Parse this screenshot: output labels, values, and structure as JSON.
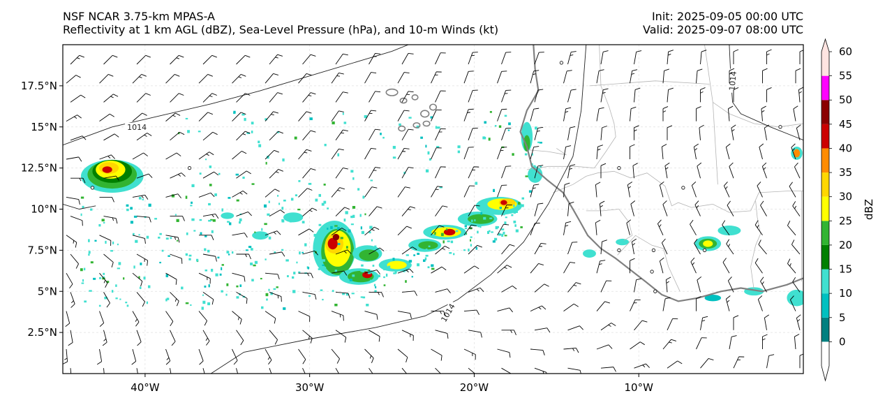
{
  "header": {
    "left_line1": "NSF NCAR 3.75-km MPAS-A",
    "left_line2": "Reflectivity at 1 km AGL (dBZ), Sea-Level Pressure (hPa), and 10-m Winds (kt)",
    "right_line1": "Init: 2025-09-05 00:00 UTC",
    "right_line2": "Valid: 2025-09-07 08:00 UTC"
  },
  "map": {
    "extent": {
      "lon_min": -45,
      "lon_max": 0,
      "lat_min": 0,
      "lat_max": 20
    },
    "lat_ticks": [
      {
        "value": 2.5,
        "label": "2.5°N"
      },
      {
        "value": 5,
        "label": "5°N"
      },
      {
        "value": 7.5,
        "label": "7.5°N"
      },
      {
        "value": 10,
        "label": "10°N"
      },
      {
        "value": 12.5,
        "label": "12.5°N"
      },
      {
        "value": 15,
        "label": "15°N"
      },
      {
        "value": 17.5,
        "label": "17.5°N"
      }
    ],
    "lon_ticks": [
      {
        "value": -40,
        "label": "40°W"
      },
      {
        "value": -30,
        "label": "30°W"
      },
      {
        "value": -20,
        "label": "20°W"
      },
      {
        "value": -10,
        "label": "10°W"
      }
    ],
    "isobar_label": "1014",
    "isobars": [
      [
        [
          -45,
          13.9
        ],
        [
          -42,
          15.0
        ],
        [
          -39,
          15.7
        ],
        [
          -36,
          16.4
        ],
        [
          -33,
          17.2
        ],
        [
          -30,
          18.1
        ],
        [
          -27,
          19.0
        ],
        [
          -25,
          19.6
        ],
        [
          -24,
          20
        ]
      ],
      [
        [
          -36,
          0
        ],
        [
          -34,
          1.3
        ],
        [
          -30,
          2.1
        ],
        [
          -26,
          2.8
        ],
        [
          -23,
          3.5
        ],
        [
          -21,
          4.5
        ],
        [
          -19,
          6.0
        ],
        [
          -17,
          8.0
        ],
        [
          -15.5,
          10.3
        ],
        [
          -14,
          13.2
        ],
        [
          -13.5,
          16
        ],
        [
          -13.2,
          20
        ]
      ],
      [
        [
          -4.5,
          20
        ],
        [
          -4.4,
          17.8
        ],
        [
          -4.3,
          16.5
        ],
        [
          -3.8,
          15.8
        ],
        [
          -2,
          15
        ],
        [
          0,
          14.2
        ]
      ],
      [
        [
          -45,
          10.3
        ],
        [
          -44,
          10.0
        ],
        [
          -43,
          10.2
        ]
      ]
    ],
    "coastline": [
      [
        -16.4,
        20
      ],
      [
        -16.3,
        18.5
      ],
      [
        -16.1,
        17.2
      ],
      [
        -16.8,
        16.0
      ],
      [
        -17.2,
        14.7
      ],
      [
        -16.8,
        13.8
      ],
      [
        -16.5,
        12.6
      ],
      [
        -15.6,
        11.8
      ],
      [
        -14.6,
        11.0
      ],
      [
        -14.0,
        10.0
      ],
      [
        -13.6,
        9.3
      ],
      [
        -13.1,
        8.4
      ],
      [
        -12.3,
        7.6
      ],
      [
        -11.4,
        7.0
      ],
      [
        -10.5,
        6.3
      ],
      [
        -9.6,
        5.6
      ],
      [
        -8.6,
        4.8
      ],
      [
        -7.6,
        4.4
      ],
      [
        -6.4,
        4.6
      ],
      [
        -5.0,
        5.0
      ],
      [
        -3.8,
        5.2
      ],
      [
        -2.5,
        5.0
      ],
      [
        -1.0,
        5.4
      ],
      [
        0,
        5.8
      ]
    ],
    "borders": [
      [
        [
          -12.4,
          20
        ],
        [
          -12.3,
          17.5
        ],
        [
          -11.8,
          16.2
        ],
        [
          -11.5,
          15.2
        ],
        [
          -11.4,
          14.4
        ],
        [
          -12.0,
          13.5
        ],
        [
          -12.7,
          12.5
        ],
        [
          -13.8,
          12.6
        ],
        [
          -15.5,
          12.6
        ],
        [
          -16.8,
          12.4
        ]
      ],
      [
        [
          -16.7,
          13.6
        ],
        [
          -15.5,
          13.5
        ],
        [
          -14.4,
          13.3
        ],
        [
          -15.0,
          13.7
        ]
      ],
      [
        [
          -15.2,
          11.0
        ],
        [
          -14.0,
          11.5
        ],
        [
          -13.2,
          12.0
        ],
        [
          -12.5,
          12.2
        ],
        [
          -11.5,
          12.3
        ],
        [
          -10.5,
          11.9
        ],
        [
          -9.5,
          12.2
        ],
        [
          -8.4,
          11.4
        ],
        [
          -8.0,
          10.2
        ],
        [
          -7.6,
          10.4
        ],
        [
          -6.8,
          10.1
        ],
        [
          -5.5,
          10.3
        ],
        [
          -4.5,
          9.8
        ],
        [
          -3.2,
          9.9
        ],
        [
          -2.7,
          11.0
        ],
        [
          -1.0,
          11.1
        ],
        [
          0,
          11.1
        ]
      ],
      [
        [
          -13.2,
          9.9
        ],
        [
          -12.2,
          9.9
        ],
        [
          -11.2,
          10.0
        ],
        [
          -10.6,
          9.2
        ],
        [
          -10.4,
          8.4
        ],
        [
          -10.9,
          8.1
        ]
      ],
      [
        [
          -11.3,
          7.2
        ],
        [
          -10.2,
          8.4
        ],
        [
          -9.2,
          7.8
        ],
        [
          -8.5,
          7.6
        ],
        [
          -8.2,
          6.5
        ],
        [
          -7.5,
          5.0
        ]
      ],
      [
        [
          -3.0,
          5.1
        ],
        [
          -3.2,
          6.5
        ],
        [
          -2.9,
          7.8
        ],
        [
          -2.6,
          8.5
        ],
        [
          -2.8,
          9.5
        ],
        [
          -2.9,
          10.5
        ]
      ],
      [
        [
          -8.7,
          20
        ],
        [
          -6.0,
          20
        ],
        [
          -5.5,
          16.5
        ],
        [
          -4.5,
          15.8
        ],
        [
          -3.0,
          15.2
        ],
        [
          -1.5,
          15.0
        ],
        [
          0,
          15.2
        ]
      ],
      [
        [
          -5.5,
          16.5
        ],
        [
          -5.2,
          11.5
        ]
      ],
      [
        [
          -0.1,
          11.1
        ],
        [
          -0.1,
          5.6
        ]
      ],
      [
        [
          -13.0,
          17.5
        ],
        [
          -9.0,
          17.8
        ],
        [
          -5.7,
          17.6
        ]
      ]
    ],
    "islands": [
      [
        -25.0,
        17.1,
        0.35,
        0.2
      ],
      [
        -24.3,
        16.6,
        0.2,
        0.15
      ],
      [
        -23.6,
        16.8,
        0.18,
        0.15
      ],
      [
        -23.0,
        15.8,
        0.25,
        0.2
      ],
      [
        -24.4,
        14.9,
        0.2,
        0.15
      ],
      [
        -23.5,
        15.1,
        0.2,
        0.15
      ],
      [
        -22.9,
        15.2,
        0.2,
        0.15
      ],
      [
        -22.5,
        16.2,
        0.2,
        0.18
      ]
    ],
    "small_circles": [
      [
        -14.7,
        18.9
      ],
      [
        -1.4,
        15.0
      ],
      [
        -11.2,
        12.5
      ],
      [
        -37.3,
        12.5
      ],
      [
        -7.3,
        11.3
      ],
      [
        -11.2,
        7.5
      ],
      [
        -9.1,
        7.5
      ],
      [
        -6.0,
        7.5
      ],
      [
        -9.2,
        6.2
      ],
      [
        -9.0,
        5.0
      ],
      [
        -43.2,
        11.3
      ]
    ],
    "winds": {
      "arrow_dir_deg": [
        [
          45,
          45,
          45,
          45,
          45,
          45,
          40,
          40,
          35,
          30,
          30,
          25,
          20,
          20,
          20,
          15,
          10,
          10,
          5,
          5,
          0,
          0,
          0
        ],
        [
          50,
          45,
          45,
          45,
          45,
          45,
          40,
          40,
          35,
          30,
          30,
          25,
          20,
          20,
          15,
          15,
          10,
          10,
          5,
          5,
          0,
          0,
          0
        ],
        [
          55,
          50,
          45,
          45,
          45,
          45,
          40,
          40,
          35,
          30,
          30,
          25,
          20,
          20,
          15,
          15,
          10,
          5,
          5,
          0,
          0,
          0,
          355
        ],
        [
          60,
          55,
          50,
          50,
          45,
          45,
          40,
          40,
          35,
          30,
          30,
          25,
          20,
          20,
          15,
          10,
          10,
          5,
          0,
          0,
          355,
          355,
          350
        ],
        [
          70,
          60,
          55,
          50,
          50,
          45,
          45,
          40,
          35,
          30,
          30,
          25,
          20,
          20,
          15,
          10,
          5,
          0,
          0,
          355,
          350,
          350,
          345
        ],
        [
          80,
          70,
          60,
          60,
          55,
          50,
          45,
          40,
          35,
          30,
          30,
          25,
          20,
          20,
          15,
          10,
          5,
          0,
          355,
          350,
          345,
          345,
          340
        ],
        [
          90,
          80,
          70,
          65,
          60,
          55,
          45,
          40,
          35,
          30,
          30,
          25,
          25,
          20,
          15,
          10,
          0,
          355,
          350,
          345,
          340,
          340,
          335
        ],
        [
          100,
          90,
          80,
          75,
          70,
          60,
          50,
          45,
          40,
          35,
          35,
          30,
          25,
          20,
          15,
          5,
          355,
          350,
          345,
          340,
          335,
          335,
          330
        ],
        [
          110,
          100,
          95,
          90,
          80,
          70,
          60,
          50,
          45,
          40,
          40,
          35,
          30,
          25,
          15,
          5,
          355,
          345,
          340,
          335,
          330,
          330,
          325
        ],
        [
          125,
          115,
          105,
          100,
          90,
          80,
          70,
          60,
          55,
          50,
          45,
          40,
          35,
          30,
          20,
          10,
          355,
          345,
          335,
          330,
          325,
          325,
          320
        ],
        [
          140,
          130,
          120,
          110,
          100,
          90,
          80,
          75,
          70,
          60,
          55,
          50,
          45,
          40,
          30,
          20,
          5,
          350,
          335,
          330,
          325,
          320,
          320
        ],
        [
          150,
          140,
          130,
          120,
          115,
          105,
          95,
          90,
          80,
          75,
          70,
          60,
          55,
          50,
          40,
          30,
          15,
          0,
          345,
          335,
          330,
          325,
          320
        ],
        [
          160,
          150,
          140,
          135,
          125,
          120,
          110,
          100,
          95,
          90,
          85,
          75,
          70,
          60,
          50,
          40,
          25,
          10,
          355,
          345,
          335,
          330,
          325
        ],
        [
          165,
          160,
          150,
          145,
          140,
          130,
          125,
          115,
          110,
          105,
          100,
          90,
          85,
          75,
          65,
          55,
          40,
          25,
          10,
          0,
          345,
          340,
          335
        ],
        [
          170,
          165,
          160,
          155,
          150,
          145,
          140,
          130,
          125,
          120,
          115,
          105,
          100,
          90,
          80,
          70,
          55,
          40,
          25,
          10,
          0,
          350,
          345
        ],
        [
          175,
          170,
          165,
          160,
          160,
          155,
          150,
          145,
          140,
          135,
          130,
          120,
          115,
          105,
          95,
          85,
          70,
          55,
          40,
          25,
          10,
          0,
          355
        ],
        [
          175,
          175,
          170,
          170,
          165,
          165,
          160,
          155,
          150,
          145,
          140,
          135,
          130,
          120,
          110,
          100,
          85,
          70,
          55,
          40,
          25,
          10,
          0
        ]
      ]
    }
  },
  "colorbar": {
    "label": "dBZ",
    "ticks": [
      "0",
      "5",
      "10",
      "15",
      "20",
      "25",
      "30",
      "35",
      "40",
      "45",
      "50",
      "55",
      "60"
    ],
    "colors": [
      "#008080",
      "#00c0c0",
      "#40e0d0",
      "#008000",
      "#32b432",
      "#ffff00",
      "#ffd700",
      "#ff8c00",
      "#cc0000",
      "#8b0000",
      "#ff00ff",
      "#ffe4e1"
    ]
  },
  "radar": {
    "palette": {
      "cyan": "#00c0c0",
      "turq": "#40e0d0",
      "dgreen": "#008000",
      "green": "#32b432",
      "yellow": "#ffff00",
      "gold": "#ffd700",
      "orange": "#ff8c00",
      "red": "#cc0000",
      "dred": "#8b0000"
    },
    "cells": [
      [
        -42.0,
        12.0,
        1.9,
        1.0,
        "turq"
      ],
      [
        -42.0,
        12.1,
        1.5,
        0.85,
        "green"
      ],
      [
        -42.0,
        12.3,
        1.2,
        0.7,
        "dgreen"
      ],
      [
        -42.1,
        12.4,
        0.9,
        0.55,
        "yellow"
      ],
      [
        -42.2,
        12.5,
        0.6,
        0.35,
        "gold"
      ],
      [
        -42.3,
        12.4,
        0.3,
        0.2,
        "red"
      ],
      [
        -28.5,
        7.6,
        1.3,
        1.7,
        "turq"
      ],
      [
        -28.3,
        7.4,
        1.0,
        1.4,
        "green"
      ],
      [
        -28.3,
        7.6,
        0.8,
        1.1,
        "yellow"
      ],
      [
        -28.5,
        7.9,
        0.55,
        0.6,
        "gold"
      ],
      [
        -28.6,
        7.9,
        0.3,
        0.35,
        "red"
      ],
      [
        -28.4,
        8.3,
        0.2,
        0.2,
        "dred"
      ],
      [
        -26.5,
        7.3,
        0.9,
        0.5,
        "turq"
      ],
      [
        -26.4,
        7.2,
        0.6,
        0.35,
        "green"
      ],
      [
        -27.0,
        5.9,
        1.2,
        0.5,
        "turq"
      ],
      [
        -26.9,
        5.9,
        0.8,
        0.35,
        "green"
      ],
      [
        -26.5,
        6.0,
        0.3,
        0.2,
        "red"
      ],
      [
        -24.8,
        6.6,
        1.0,
        0.4,
        "turq"
      ],
      [
        -24.7,
        6.6,
        0.6,
        0.25,
        "yellow"
      ],
      [
        -23.0,
        7.8,
        1.0,
        0.4,
        "turq"
      ],
      [
        -22.8,
        7.8,
        0.6,
        0.25,
        "green"
      ],
      [
        -21.8,
        8.6,
        1.3,
        0.45,
        "turq"
      ],
      [
        -21.7,
        8.6,
        0.9,
        0.3,
        "yellow"
      ],
      [
        -21.5,
        8.6,
        0.35,
        0.2,
        "red"
      ],
      [
        -19.8,
        9.4,
        1.2,
        0.45,
        "turq"
      ],
      [
        -19.6,
        9.4,
        0.8,
        0.3,
        "green"
      ],
      [
        -18.5,
        10.2,
        1.4,
        0.55,
        "turq"
      ],
      [
        -18.3,
        10.3,
        0.9,
        0.35,
        "yellow"
      ],
      [
        -18.0,
        10.4,
        0.5,
        0.25,
        "gold"
      ],
      [
        -18.2,
        10.4,
        0.2,
        0.15,
        "red"
      ],
      [
        -16.8,
        14.4,
        0.35,
        0.9,
        "turq"
      ],
      [
        -16.8,
        14.0,
        0.2,
        0.5,
        "green"
      ],
      [
        -16.3,
        12.1,
        0.45,
        0.5,
        "turq"
      ],
      [
        -5.8,
        7.9,
        0.8,
        0.45,
        "turq"
      ],
      [
        -5.8,
        7.9,
        0.55,
        0.3,
        "green"
      ],
      [
        -5.8,
        7.9,
        0.3,
        0.2,
        "yellow"
      ],
      [
        -4.5,
        8.7,
        0.7,
        0.3,
        "turq"
      ],
      [
        -0.4,
        13.4,
        0.35,
        0.4,
        "turq"
      ],
      [
        -0.4,
        13.4,
        0.2,
        0.25,
        "orange"
      ],
      [
        -0.4,
        4.6,
        0.6,
        0.5,
        "turq"
      ],
      [
        -3.0,
        5.0,
        0.6,
        0.25,
        "turq"
      ],
      [
        -5.5,
        4.6,
        0.5,
        0.2,
        "cyan"
      ],
      [
        -31.0,
        9.5,
        0.6,
        0.3,
        "turq"
      ],
      [
        -35.0,
        9.6,
        0.4,
        0.2,
        "turq"
      ],
      [
        -33.0,
        8.4,
        0.5,
        0.25,
        "turq"
      ],
      [
        -13.0,
        7.3,
        0.4,
        0.25,
        "turq"
      ],
      [
        -11.0,
        8.0,
        0.4,
        0.2,
        "turq"
      ]
    ]
  }
}
